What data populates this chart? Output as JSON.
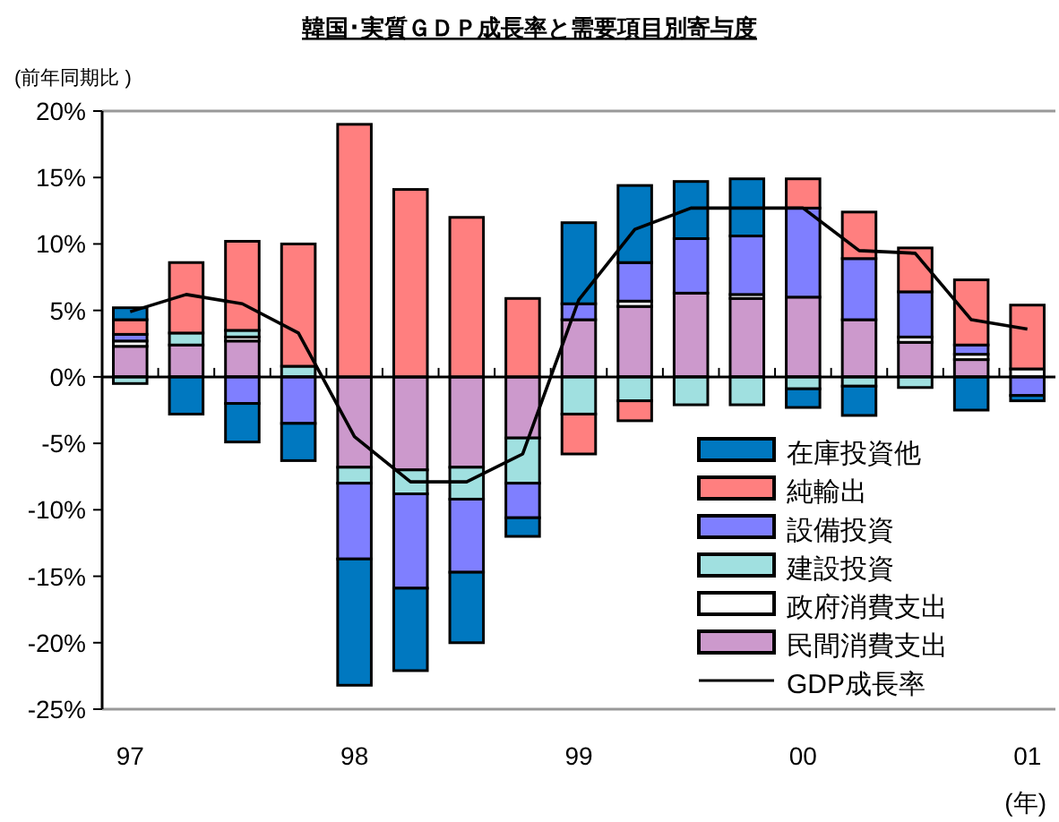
{
  "chart_data": {
    "type": "bar",
    "stacked": true,
    "title": "韓国･実質ＧＤＰ成長率と需要項目別寄与度",
    "ylabel": "(前年同期比 )",
    "xlabel": "(年)",
    "categories": [
      "97",
      null,
      null,
      null,
      "98",
      null,
      null,
      null,
      "99",
      null,
      null,
      null,
      "00",
      null,
      null,
      null,
      "01"
    ],
    "series": [
      {
        "name": "民間消費支出",
        "color": "#cc99cc",
        "values": [
          2.3,
          2.4,
          2.7,
          0,
          -6.8,
          -7.0,
          -6.8,
          -4.6,
          4.3,
          5.3,
          6.3,
          5.9,
          6.0,
          4.3,
          2.6,
          1.3,
          0
        ]
      },
      {
        "name": "政府消費支出",
        "color": "#ffffff",
        "values": [
          0.4,
          0,
          0.3,
          null,
          0,
          0,
          0,
          0,
          0,
          0.4,
          null,
          0.3,
          0,
          0,
          0.4,
          0.4,
          0.6
        ]
      },
      {
        "name": "建設投資",
        "color": "#a0e0e0",
        "values": [
          -0.5,
          0.9,
          0.5,
          0.8,
          -1.2,
          -1.8,
          -2.4,
          -3.4,
          -2.8,
          -1.8,
          -2.1,
          -2.1,
          -0.9,
          -0.7,
          -0.8,
          null,
          0
        ]
      },
      {
        "name": "設備投資",
        "color": "#7f7fff",
        "values": [
          0.5,
          0,
          -2.0,
          -3.5,
          -5.7,
          -7.1,
          -5.5,
          -2.6,
          1.2,
          2.9,
          4.1,
          4.4,
          6.7,
          4.6,
          3.4,
          0.7,
          -1.4
        ]
      },
      {
        "name": "純輸出",
        "color": "#ff7f7f",
        "values": [
          1.1,
          5.3,
          6.7,
          9.2,
          19.0,
          14.1,
          12.0,
          5.9,
          -3.0,
          -1.5,
          0,
          0,
          2.2,
          3.5,
          3.3,
          4.9,
          4.8
        ]
      },
      {
        "name": "在庫投資他",
        "color": "#0078c0",
        "values": [
          0.9,
          -2.8,
          -2.9,
          -2.8,
          -9.5,
          -6.2,
          -5.3,
          -1.4,
          6.1,
          5.8,
          4.3,
          4.3,
          -1.4,
          -2.2,
          0,
          -2.5,
          -0.4
        ]
      },
      {
        "name": "GDP成長率",
        "type": "line",
        "color": "#000000",
        "marker": "none",
        "values": [
          4.9,
          6.2,
          5.5,
          3.3,
          -4.5,
          -7.9,
          -7.9,
          -5.8,
          5.8,
          11.1,
          12.7,
          12.7,
          12.7,
          9.5,
          9.3,
          4.3,
          3.6
        ]
      }
    ],
    "ylim": [
      -25,
      20
    ],
    "yticks": [
      {
        "value": -25,
        "label": "-25%"
      },
      {
        "value": -20,
        "label": "-20%"
      },
      {
        "value": -15,
        "label": "-15%"
      },
      {
        "value": -10,
        "label": "-10%"
      },
      {
        "value": -5,
        "label": "-5%"
      },
      {
        "value": 0,
        "label": "0%"
      },
      {
        "value": 5,
        "label": "5%"
      },
      {
        "value": 10,
        "label": "10%"
      },
      {
        "value": 15,
        "label": "15%"
      },
      {
        "value": 20,
        "label": "20%"
      }
    ],
    "legend": "bottom right"
  }
}
